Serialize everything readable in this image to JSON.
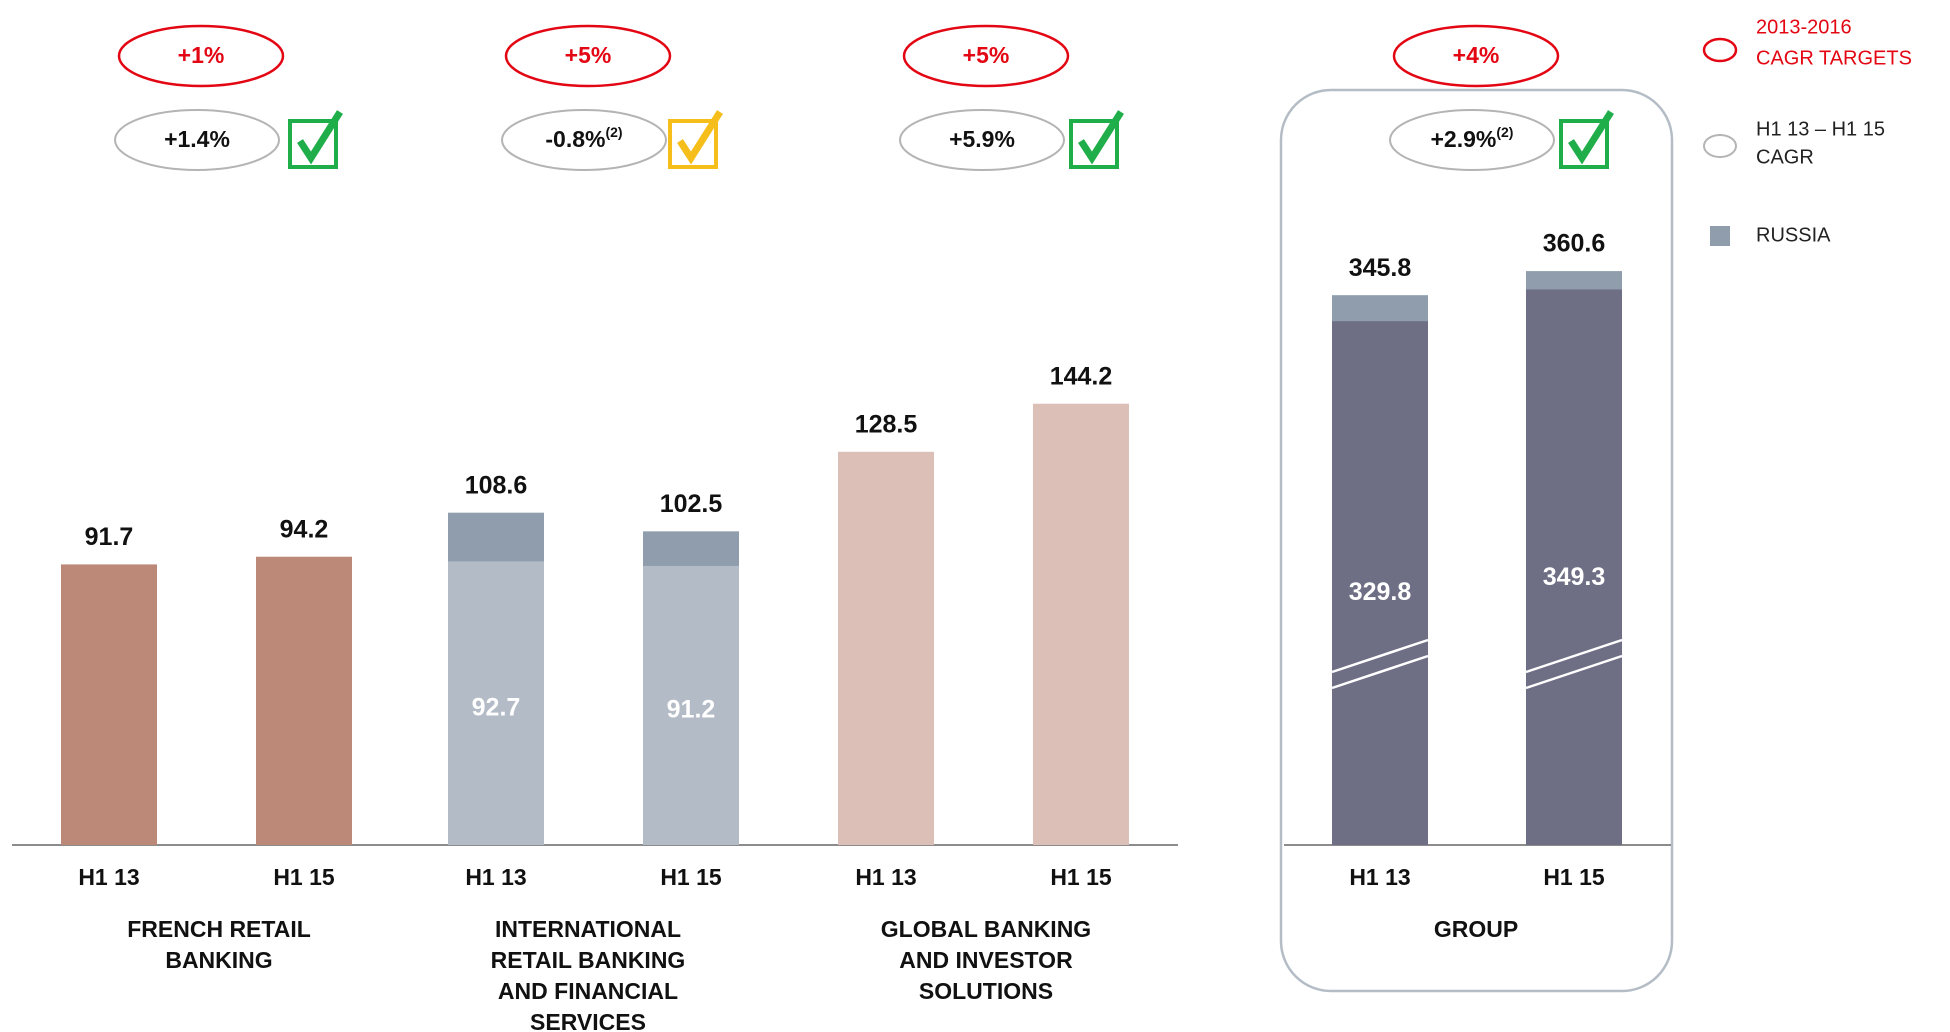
{
  "chart_data": {
    "type": "bar",
    "ylim": [
      0,
      250
    ],
    "panels": [
      {
        "name": [
          "FRENCH RETAIL",
          "BANKING"
        ],
        "target": "+1%",
        "cagr": "+1.4%",
        "note": null,
        "check_color": "#1fae4a",
        "color": "#bc8878",
        "bars": [
          {
            "period": "H1 13",
            "total": 91.7
          },
          {
            "period": "H1 15",
            "total": 94.2
          }
        ]
      },
      {
        "name": [
          "INTERNATIONAL",
          "RETAIL BANKING",
          "AND FINANCIAL",
          "SERVICES"
        ],
        "target": "+5%",
        "cagr": "-0.8%",
        "note": "(2)",
        "check_color": "#f5be1a",
        "color": "#b3bbc6",
        "bars": [
          {
            "period": "H1 13",
            "total": 108.6,
            "base": 92.7
          },
          {
            "period": "H1 15",
            "total": 102.5,
            "base": 91.2
          }
        ]
      },
      {
        "name": [
          "GLOBAL BANKING",
          "AND INVESTOR",
          "SOLUTIONS"
        ],
        "target": "+5%",
        "cagr": "+5.9%",
        "note": null,
        "check_color": "#1fae4a",
        "color": "#dcbfb6",
        "bars": [
          {
            "period": "H1 13",
            "total": 128.5
          },
          {
            "period": "H1 15",
            "total": 144.2
          }
        ]
      },
      {
        "name": [
          "GROUP"
        ],
        "target": "+4%",
        "cagr": "+2.9%",
        "note": "(2)",
        "check_color": "#1fae4a",
        "color": "#6e6e85",
        "ylim": [
          8,
          478
        ],
        "bars": [
          {
            "period": "H1 13",
            "total": 345.8,
            "base": 329.8
          },
          {
            "period": "H1 15",
            "total": 360.6,
            "base": 349.3
          }
        ]
      }
    ],
    "russia_color": "#8f9dac",
    "legend": {
      "targets": [
        "2013-2016",
        "CAGR TARGETS"
      ],
      "cagr": [
        "H1 13 – H1 15",
        "CAGR"
      ],
      "russia": "RUSSIA"
    }
  }
}
